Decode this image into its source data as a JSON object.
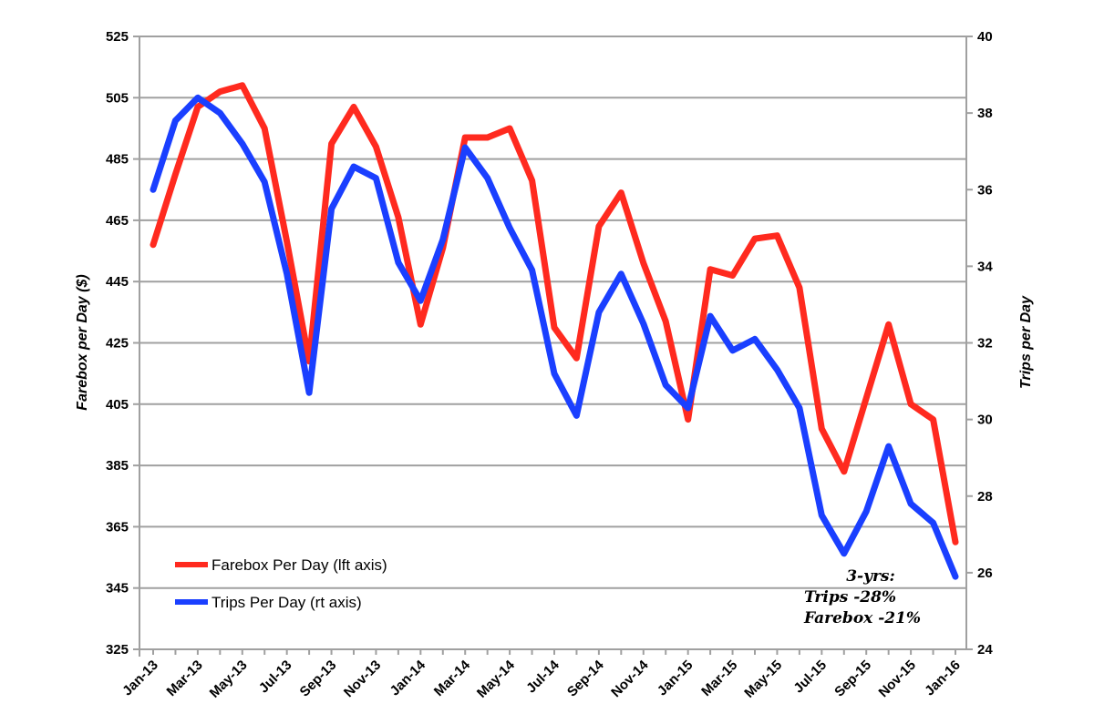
{
  "chart_data": {
    "type": "line",
    "title": "",
    "xlabel": "",
    "ylabel_left": "Farebox per Day ($)",
    "ylabel_right": "Trips per Day",
    "ylim_left": [
      325,
      525
    ],
    "ylim_right": [
      24,
      40
    ],
    "yticks_left": [
      "325",
      "345",
      "365",
      "385",
      "405",
      "425",
      "445",
      "465",
      "485",
      "505",
      "525"
    ],
    "yticks_right": [
      "24",
      "26",
      "28",
      "30",
      "32",
      "34",
      "36",
      "38",
      "40"
    ],
    "xtick_labels": [
      "Jan-13",
      "Mar-13",
      "May-13",
      "Jul-13",
      "Sep-13",
      "Nov-13",
      "Jan-14",
      "Mar-14",
      "May-14",
      "Jul-14",
      "Sep-14",
      "Nov-14",
      "Jan-15",
      "Mar-15",
      "May-15",
      "Jul-15",
      "Sep-15",
      "Nov-15",
      "Jan-16"
    ],
    "x": [
      "Jan-13",
      "Feb-13",
      "Mar-13",
      "Apr-13",
      "May-13",
      "Jun-13",
      "Jul-13",
      "Aug-13",
      "Sep-13",
      "Oct-13",
      "Nov-13",
      "Dec-13",
      "Jan-14",
      "Feb-14",
      "Mar-14",
      "Apr-14",
      "May-14",
      "Jun-14",
      "Jul-14",
      "Aug-14",
      "Sep-14",
      "Oct-14",
      "Nov-14",
      "Dec-14",
      "Jan-15",
      "Feb-15",
      "Mar-15",
      "Apr-15",
      "May-15",
      "Jun-15",
      "Jul-15",
      "Aug-15",
      "Sep-15",
      "Oct-15",
      "Nov-15",
      "Dec-15",
      "Jan-16"
    ],
    "grid": true,
    "legend_position": "bottom-left",
    "series": [
      {
        "name": "Farebox Per Day (lft axis)",
        "axis": "left",
        "color": "#ff2a1f",
        "values": [
          457,
          480,
          502,
          507,
          509,
          495,
          458,
          419,
          490,
          502,
          489,
          466,
          431,
          456,
          492,
          492,
          495,
          478,
          430,
          420,
          463,
          474,
          451,
          432,
          400,
          449,
          447,
          459,
          460,
          443,
          397,
          383,
          407,
          431,
          405,
          400,
          360
        ]
      },
      {
        "name": "Trips Per Day (rt axis)",
        "axis": "right",
        "color": "#1a3fff",
        "values": [
          36.0,
          37.8,
          38.4,
          38.0,
          37.2,
          36.2,
          33.8,
          30.7,
          35.5,
          36.6,
          36.3,
          34.1,
          33.1,
          34.7,
          37.1,
          36.3,
          35.0,
          33.9,
          31.2,
          30.1,
          32.8,
          33.8,
          32.5,
          30.9,
          30.3,
          32.7,
          31.8,
          32.1,
          31.3,
          30.3,
          27.5,
          26.5,
          27.6,
          29.3,
          27.8,
          27.3,
          25.9
        ]
      }
    ],
    "annotation": [
      "3-yrs:",
      "Trips -28%",
      "Farebox -21%"
    ]
  }
}
